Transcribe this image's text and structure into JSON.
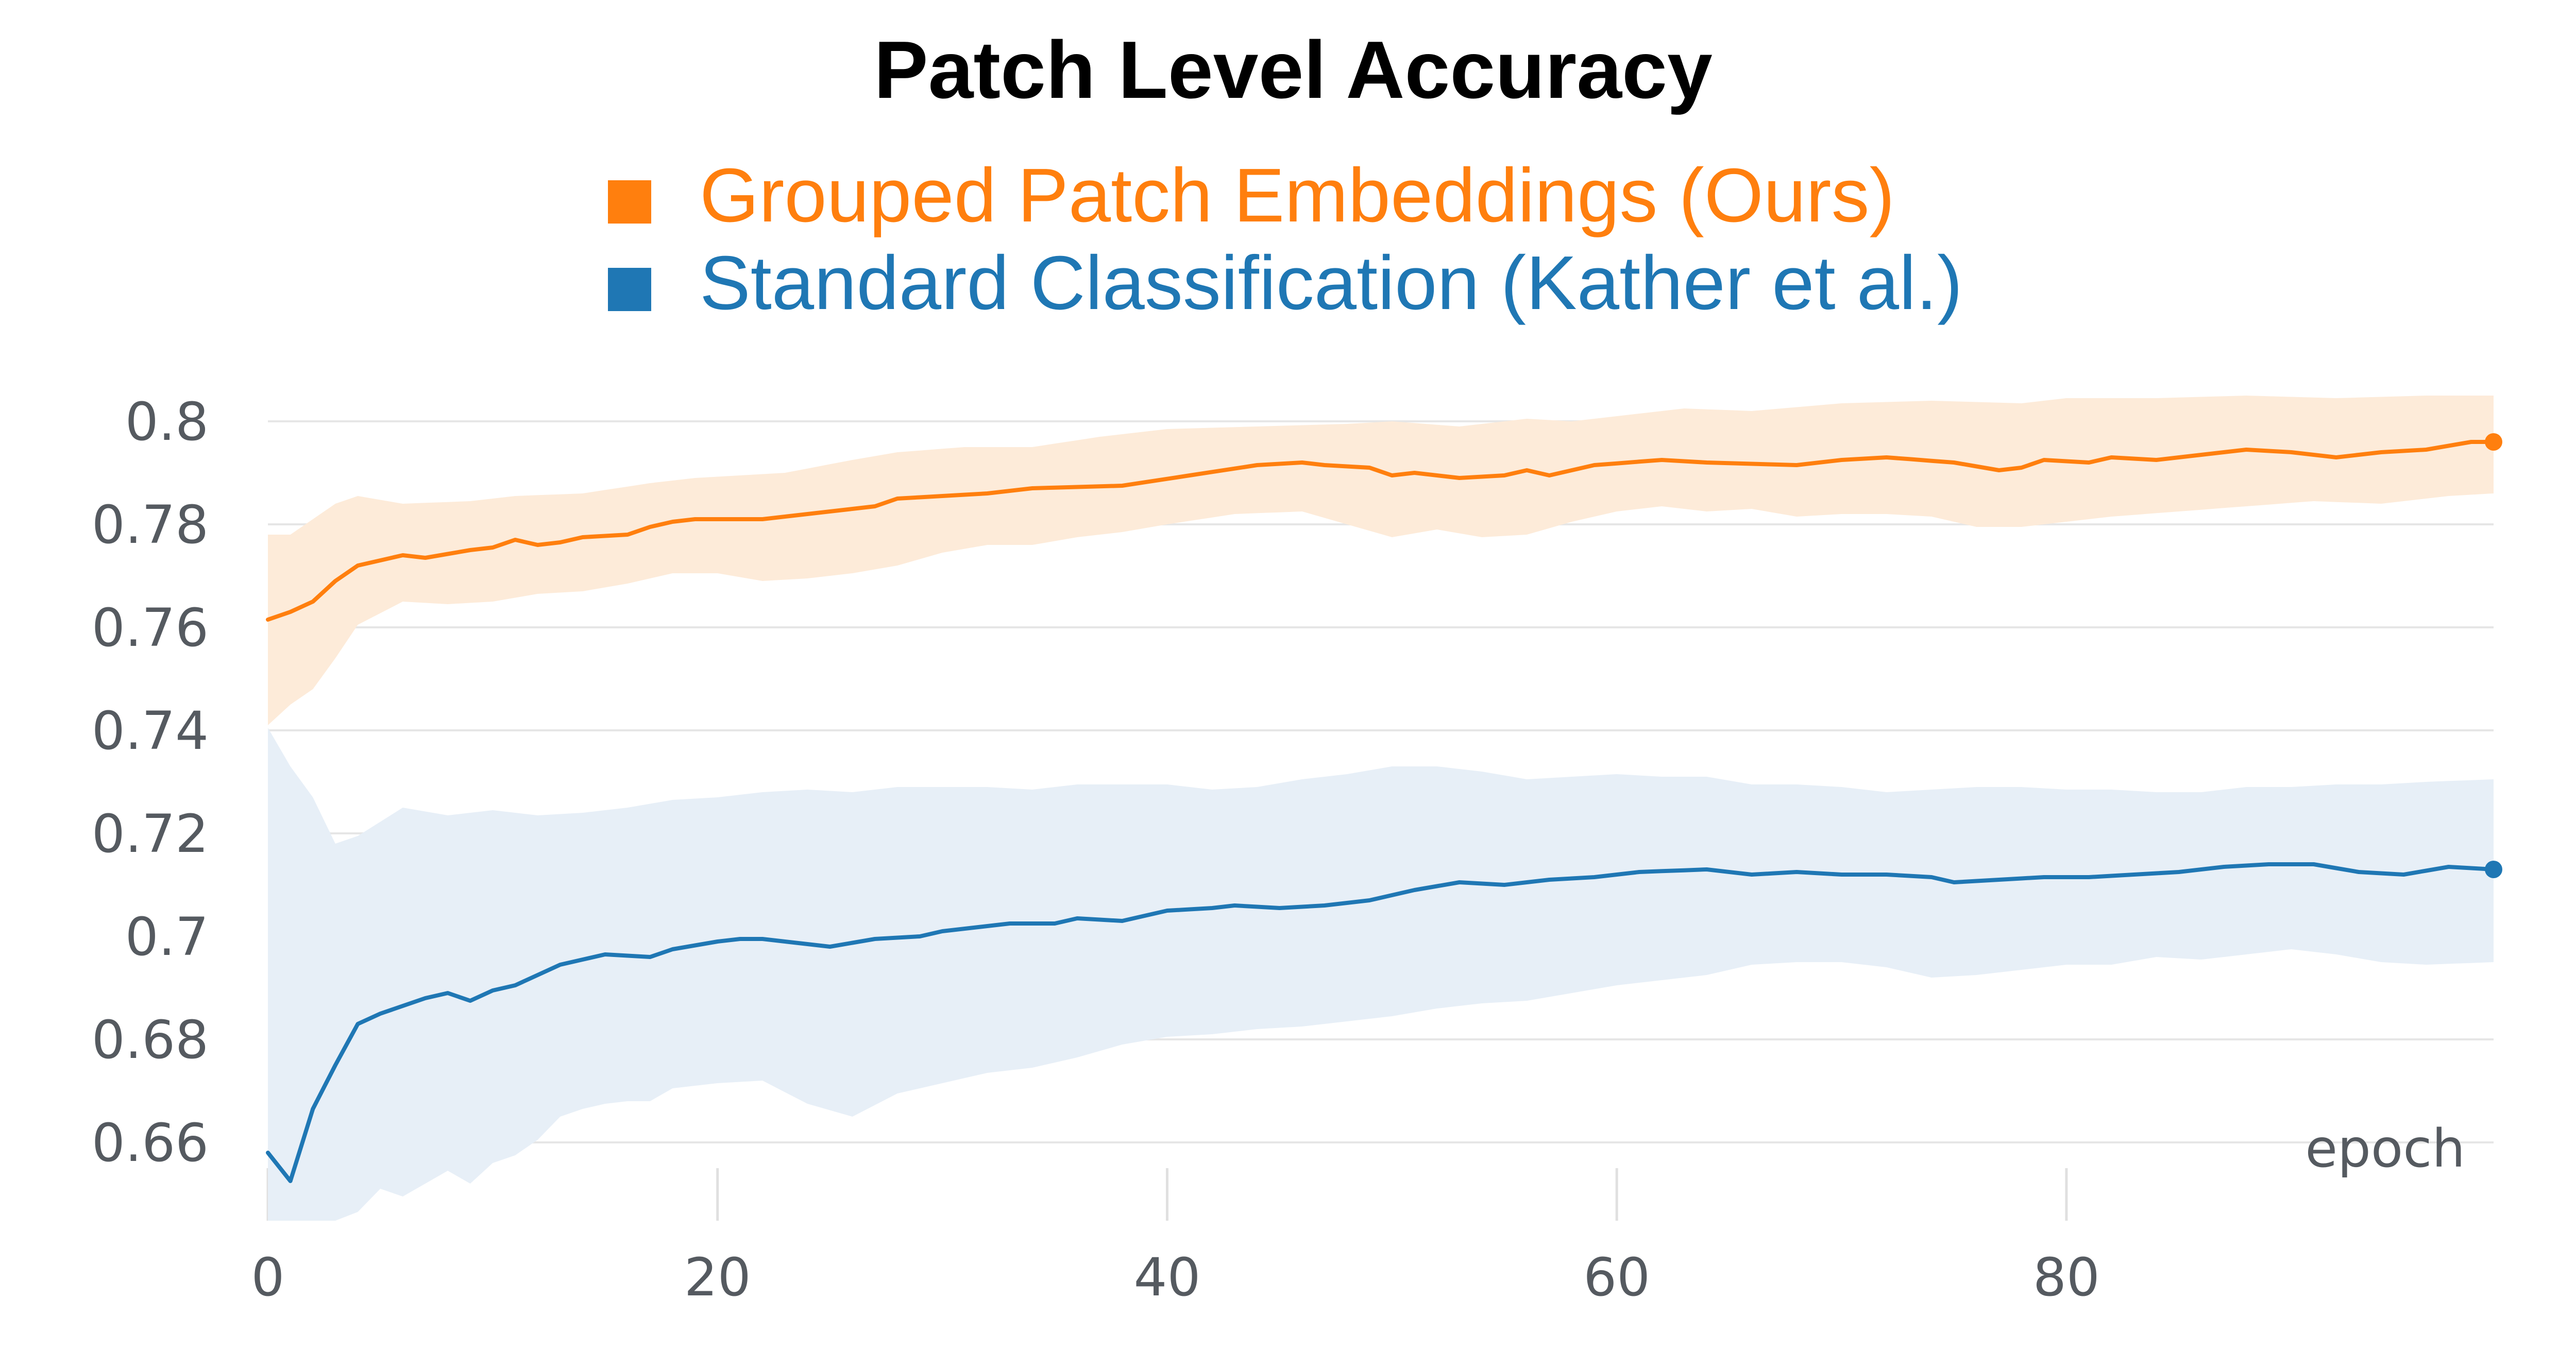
{
  "chart_data": {
    "type": "line",
    "title": "Patch Level Accuracy",
    "xlabel": "epoch",
    "ylabel": "",
    "xlim": [
      0,
      99
    ],
    "ylim": [
      0.645,
      0.806
    ],
    "x_ticks": [
      0,
      20,
      40,
      60,
      80
    ],
    "x_tick_labels": [
      "0",
      "20",
      "40",
      "60",
      "80"
    ],
    "y_ticks": [
      0.66,
      0.68,
      0.7,
      0.72,
      0.74,
      0.76,
      0.78,
      0.8
    ],
    "y_tick_labels": [
      "0.66",
      "0.68",
      "0.7",
      "0.72",
      "0.74",
      "0.76",
      "0.78",
      "0.8"
    ],
    "grid": true,
    "legend_position": "top-center",
    "series": [
      {
        "name": "Grouped Patch Embeddings (Ours)",
        "color": "#ff7f0e",
        "band_color": "#fdebd9",
        "anchors": [
          [
            0,
            0.7615
          ],
          [
            1,
            0.763
          ],
          [
            2,
            0.765
          ],
          [
            3,
            0.769
          ],
          [
            4,
            0.772
          ],
          [
            6,
            0.774
          ],
          [
            7,
            0.7735
          ],
          [
            9,
            0.775
          ],
          [
            10,
            0.7755
          ],
          [
            11,
            0.777
          ],
          [
            12,
            0.776
          ],
          [
            13,
            0.7765
          ],
          [
            14,
            0.7775
          ],
          [
            16,
            0.778
          ],
          [
            17,
            0.7795
          ],
          [
            18,
            0.7805
          ],
          [
            19,
            0.781
          ],
          [
            22,
            0.781
          ],
          [
            24,
            0.782
          ],
          [
            25,
            0.7825
          ],
          [
            27,
            0.7835
          ],
          [
            28,
            0.785
          ],
          [
            30,
            0.7855
          ],
          [
            32,
            0.786
          ],
          [
            34,
            0.787
          ],
          [
            38,
            0.7875
          ],
          [
            41,
            0.7895
          ],
          [
            44,
            0.7915
          ],
          [
            46,
            0.792
          ],
          [
            47,
            0.7915
          ],
          [
            49,
            0.791
          ],
          [
            50,
            0.7895
          ],
          [
            51,
            0.79
          ],
          [
            53,
            0.789
          ],
          [
            55,
            0.7895
          ],
          [
            56,
            0.7905
          ],
          [
            57,
            0.7895
          ],
          [
            59,
            0.7915
          ],
          [
            62,
            0.7925
          ],
          [
            64,
            0.792
          ],
          [
            68,
            0.7915
          ],
          [
            70,
            0.7925
          ],
          [
            72,
            0.793
          ],
          [
            75,
            0.792
          ],
          [
            77,
            0.7905
          ],
          [
            78,
            0.791
          ],
          [
            79,
            0.7925
          ],
          [
            81,
            0.792
          ],
          [
            82,
            0.793
          ],
          [
            84,
            0.7925
          ],
          [
            86,
            0.7935
          ],
          [
            88,
            0.7945
          ],
          [
            90,
            0.794
          ],
          [
            92,
            0.793
          ],
          [
            94,
            0.794
          ],
          [
            96,
            0.7945
          ],
          [
            98,
            0.796
          ],
          [
            99,
            0.796
          ]
        ],
        "band_upper": [
          [
            0,
            0.778
          ],
          [
            1,
            0.778
          ],
          [
            2,
            0.781
          ],
          [
            3,
            0.784
          ],
          [
            4,
            0.7855
          ],
          [
            6,
            0.784
          ],
          [
            9,
            0.7845
          ],
          [
            11,
            0.7855
          ],
          [
            14,
            0.786
          ],
          [
            17,
            0.788
          ],
          [
            19,
            0.789
          ],
          [
            23,
            0.79
          ],
          [
            26,
            0.7925
          ],
          [
            28,
            0.794
          ],
          [
            31,
            0.795
          ],
          [
            34,
            0.795
          ],
          [
            37,
            0.797
          ],
          [
            40,
            0.7985
          ],
          [
            44,
            0.799
          ],
          [
            48,
            0.7995
          ],
          [
            50,
            0.8
          ],
          [
            53,
            0.799
          ],
          [
            56,
            0.8005
          ],
          [
            58,
            0.8
          ],
          [
            60,
            0.801
          ],
          [
            63,
            0.8025
          ],
          [
            66,
            0.802
          ],
          [
            70,
            0.8035
          ],
          [
            74,
            0.804
          ],
          [
            78,
            0.8035
          ],
          [
            80,
            0.8045
          ],
          [
            84,
            0.8045
          ],
          [
            88,
            0.805
          ],
          [
            92,
            0.8045
          ],
          [
            96,
            0.805
          ],
          [
            99,
            0.805
          ]
        ],
        "band_lower": [
          [
            0,
            0.741
          ],
          [
            1,
            0.745
          ],
          [
            2,
            0.748
          ],
          [
            3,
            0.754
          ],
          [
            4,
            0.7605
          ],
          [
            6,
            0.765
          ],
          [
            8,
            0.7645
          ],
          [
            10,
            0.765
          ],
          [
            12,
            0.7665
          ],
          [
            14,
            0.767
          ],
          [
            16,
            0.7685
          ],
          [
            18,
            0.7705
          ],
          [
            20,
            0.7705
          ],
          [
            22,
            0.769
          ],
          [
            24,
            0.7695
          ],
          [
            26,
            0.7705
          ],
          [
            28,
            0.772
          ],
          [
            30,
            0.7745
          ],
          [
            32,
            0.776
          ],
          [
            34,
            0.776
          ],
          [
            36,
            0.7775
          ],
          [
            38,
            0.7785
          ],
          [
            40,
            0.78
          ],
          [
            43,
            0.782
          ],
          [
            46,
            0.7825
          ],
          [
            48,
            0.78
          ],
          [
            50,
            0.7775
          ],
          [
            52,
            0.779
          ],
          [
            54,
            0.7775
          ],
          [
            56,
            0.778
          ],
          [
            58,
            0.7805
          ],
          [
            60,
            0.7825
          ],
          [
            62,
            0.7835
          ],
          [
            64,
            0.7825
          ],
          [
            66,
            0.783
          ],
          [
            68,
            0.7815
          ],
          [
            70,
            0.782
          ],
          [
            72,
            0.782
          ],
          [
            74,
            0.7815
          ],
          [
            76,
            0.7795
          ],
          [
            78,
            0.7795
          ],
          [
            80,
            0.7805
          ],
          [
            82,
            0.7815
          ],
          [
            85,
            0.7825
          ],
          [
            88,
            0.7835
          ],
          [
            91,
            0.7845
          ],
          [
            94,
            0.784
          ],
          [
            97,
            0.7855
          ],
          [
            99,
            0.786
          ]
        ]
      },
      {
        "name": "Standard Classification (Kather et al.)",
        "color": "#1f77b4",
        "band_color": "#e7eff7",
        "anchors": [
          [
            0,
            0.658
          ],
          [
            1,
            0.6525
          ],
          [
            2,
            0.6665
          ],
          [
            3,
            0.675
          ],
          [
            4,
            0.683
          ],
          [
            5,
            0.685
          ],
          [
            6,
            0.6865
          ],
          [
            7,
            0.688
          ],
          [
            8,
            0.689
          ],
          [
            9,
            0.6875
          ],
          [
            10,
            0.6895
          ],
          [
            11,
            0.6905
          ],
          [
            12,
            0.6925
          ],
          [
            13,
            0.6945
          ],
          [
            14,
            0.6955
          ],
          [
            15,
            0.6965
          ],
          [
            17,
            0.696
          ],
          [
            18,
            0.6975
          ],
          [
            20,
            0.699
          ],
          [
            21,
            0.6995
          ],
          [
            22,
            0.6995
          ],
          [
            25,
            0.698
          ],
          [
            27,
            0.6995
          ],
          [
            29,
            0.7
          ],
          [
            30,
            0.701
          ],
          [
            32,
            0.702
          ],
          [
            33,
            0.7025
          ],
          [
            35,
            0.7025
          ],
          [
            36,
            0.7035
          ],
          [
            38,
            0.703
          ],
          [
            40,
            0.705
          ],
          [
            42,
            0.7055
          ],
          [
            43,
            0.706
          ],
          [
            45,
            0.7055
          ],
          [
            47,
            0.706
          ],
          [
            49,
            0.707
          ],
          [
            51,
            0.709
          ],
          [
            53,
            0.7105
          ],
          [
            55,
            0.71
          ],
          [
            57,
            0.711
          ],
          [
            59,
            0.7115
          ],
          [
            61,
            0.7125
          ],
          [
            64,
            0.713
          ],
          [
            66,
            0.712
          ],
          [
            68,
            0.7125
          ],
          [
            70,
            0.712
          ],
          [
            72,
            0.712
          ],
          [
            74,
            0.7115
          ],
          [
            75,
            0.7105
          ],
          [
            77,
            0.711
          ],
          [
            79,
            0.7115
          ],
          [
            81,
            0.7115
          ],
          [
            83,
            0.712
          ],
          [
            85,
            0.7125
          ],
          [
            87,
            0.7135
          ],
          [
            89,
            0.714
          ],
          [
            91,
            0.714
          ],
          [
            93,
            0.7125
          ],
          [
            95,
            0.712
          ],
          [
            97,
            0.7135
          ],
          [
            99,
            0.713
          ]
        ],
        "band_upper": [
          [
            0,
            0.7405
          ],
          [
            1,
            0.733
          ],
          [
            2,
            0.727
          ],
          [
            3,
            0.718
          ],
          [
            4,
            0.7195
          ],
          [
            6,
            0.725
          ],
          [
            8,
            0.7235
          ],
          [
            10,
            0.7245
          ],
          [
            12,
            0.7235
          ],
          [
            14,
            0.724
          ],
          [
            16,
            0.725
          ],
          [
            18,
            0.7265
          ],
          [
            20,
            0.727
          ],
          [
            22,
            0.728
          ],
          [
            24,
            0.7285
          ],
          [
            26,
            0.728
          ],
          [
            28,
            0.729
          ],
          [
            30,
            0.729
          ],
          [
            32,
            0.729
          ],
          [
            34,
            0.7285
          ],
          [
            36,
            0.7295
          ],
          [
            38,
            0.7295
          ],
          [
            40,
            0.7295
          ],
          [
            42,
            0.7285
          ],
          [
            44,
            0.729
          ],
          [
            46,
            0.7305
          ],
          [
            48,
            0.7315
          ],
          [
            50,
            0.733
          ],
          [
            52,
            0.733
          ],
          [
            54,
            0.732
          ],
          [
            56,
            0.7305
          ],
          [
            58,
            0.731
          ],
          [
            60,
            0.7315
          ],
          [
            62,
            0.731
          ],
          [
            64,
            0.731
          ],
          [
            66,
            0.7295
          ],
          [
            68,
            0.7295
          ],
          [
            70,
            0.729
          ],
          [
            72,
            0.728
          ],
          [
            74,
            0.7285
          ],
          [
            76,
            0.729
          ],
          [
            78,
            0.729
          ],
          [
            80,
            0.7285
          ],
          [
            82,
            0.7285
          ],
          [
            84,
            0.728
          ],
          [
            86,
            0.728
          ],
          [
            88,
            0.729
          ],
          [
            90,
            0.729
          ],
          [
            92,
            0.7295
          ],
          [
            94,
            0.7295
          ],
          [
            96,
            0.73
          ],
          [
            99,
            0.7305
          ]
        ],
        "band_lower": [
          [
            0,
            0.64
          ],
          [
            3,
            0.64
          ],
          [
            4,
            0.6465
          ],
          [
            5,
            0.651
          ],
          [
            6,
            0.6495
          ],
          [
            7,
            0.652
          ],
          [
            8,
            0.6545
          ],
          [
            9,
            0.652
          ],
          [
            10,
            0.656
          ],
          [
            11,
            0.6575
          ],
          [
            12,
            0.6605
          ],
          [
            13,
            0.665
          ],
          [
            14,
            0.6665
          ],
          [
            15,
            0.6675
          ],
          [
            16,
            0.668
          ],
          [
            17,
            0.668
          ],
          [
            18,
            0.6705
          ],
          [
            20,
            0.6715
          ],
          [
            22,
            0.672
          ],
          [
            24,
            0.6675
          ],
          [
            26,
            0.665
          ],
          [
            28,
            0.6695
          ],
          [
            30,
            0.6715
          ],
          [
            32,
            0.6735
          ],
          [
            34,
            0.6745
          ],
          [
            36,
            0.6765
          ],
          [
            38,
            0.679
          ],
          [
            40,
            0.6805
          ],
          [
            42,
            0.681
          ],
          [
            44,
            0.682
          ],
          [
            46,
            0.6825
          ],
          [
            48,
            0.6835
          ],
          [
            50,
            0.6845
          ],
          [
            52,
            0.686
          ],
          [
            54,
            0.687
          ],
          [
            56,
            0.6875
          ],
          [
            58,
            0.689
          ],
          [
            60,
            0.6905
          ],
          [
            62,
            0.6915
          ],
          [
            64,
            0.6925
          ],
          [
            66,
            0.6945
          ],
          [
            68,
            0.695
          ],
          [
            70,
            0.695
          ],
          [
            72,
            0.694
          ],
          [
            74,
            0.692
          ],
          [
            76,
            0.6925
          ],
          [
            78,
            0.6935
          ],
          [
            80,
            0.6945
          ],
          [
            82,
            0.6945
          ],
          [
            84,
            0.696
          ],
          [
            86,
            0.6955
          ],
          [
            88,
            0.6965
          ],
          [
            90,
            0.6975
          ],
          [
            92,
            0.6965
          ],
          [
            94,
            0.695
          ],
          [
            96,
            0.6945
          ],
          [
            99,
            0.695
          ]
        ]
      }
    ]
  }
}
